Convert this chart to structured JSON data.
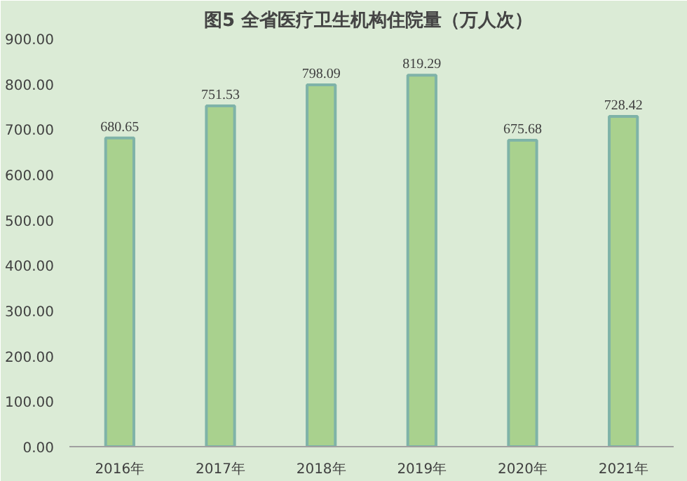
{
  "chart_data": {
    "type": "bar",
    "title": "图5  全省医疗卫生机构住院量（万人次）",
    "categories": [
      "2016年",
      "2017年",
      "2018年",
      "2019年",
      "2020年",
      "2021年"
    ],
    "values": [
      680.65,
      751.53,
      798.09,
      819.29,
      675.68,
      728.42
    ],
    "color": "#a9d18e",
    "data_labels": true,
    "grid": false,
    "ylim": [
      0,
      900
    ],
    "yticks": [
      {
        "value": 0,
        "label": "0.00"
      },
      {
        "value": 100,
        "label": "100.00"
      },
      {
        "value": 200,
        "label": "200.00"
      },
      {
        "value": 300,
        "label": "300.00"
      },
      {
        "value": 400,
        "label": "400.00"
      },
      {
        "value": 500,
        "label": "500.00"
      },
      {
        "value": 600,
        "label": "600.00"
      },
      {
        "value": 700,
        "label": "700.00"
      },
      {
        "value": 800,
        "label": "800.00"
      },
      {
        "value": 900,
        "label": "900.00"
      }
    ]
  }
}
